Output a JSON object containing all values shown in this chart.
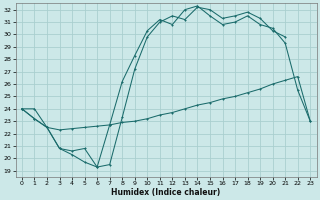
{
  "xlabel": "Humidex (Indice chaleur)",
  "bg_color": "#cce8e8",
  "grid_color": "#aacfcf",
  "line_color": "#1a6b6b",
  "xlim": [
    -0.5,
    23.5
  ],
  "ylim": [
    18.5,
    32.5
  ],
  "xticks": [
    0,
    1,
    2,
    3,
    4,
    5,
    6,
    7,
    8,
    9,
    10,
    11,
    12,
    13,
    14,
    15,
    16,
    17,
    18,
    19,
    20,
    21,
    22,
    23
  ],
  "yticks": [
    19,
    20,
    21,
    22,
    23,
    24,
    25,
    26,
    27,
    28,
    29,
    30,
    31,
    32
  ],
  "line1_x": [
    0,
    1,
    2,
    3,
    4,
    5,
    6,
    7,
    8,
    9,
    10,
    11,
    12,
    13,
    14,
    15,
    16,
    17,
    18,
    19,
    20,
    21
  ],
  "line1_y": [
    24.0,
    24.0,
    22.5,
    20.8,
    20.6,
    20.8,
    19.3,
    19.5,
    23.3,
    27.2,
    29.8,
    31.0,
    31.5,
    31.2,
    32.2,
    32.0,
    31.3,
    31.5,
    31.8,
    31.3,
    30.3,
    29.8
  ],
  "line2_x": [
    0,
    1,
    2,
    3,
    4,
    5,
    6,
    7,
    8,
    9,
    10,
    11,
    12,
    13,
    14,
    15,
    16,
    17,
    18,
    19,
    20,
    21,
    22,
    23
  ],
  "line2_y": [
    24.0,
    23.2,
    22.5,
    22.3,
    22.4,
    22.5,
    22.6,
    22.7,
    22.9,
    23.0,
    23.2,
    23.5,
    23.7,
    24.0,
    24.3,
    24.5,
    24.8,
    25.0,
    25.3,
    25.6,
    26.0,
    26.3,
    26.6,
    23.0
  ],
  "line3_x": [
    0,
    1,
    2,
    3,
    4,
    5,
    6,
    7,
    8,
    9,
    10,
    11,
    12,
    13,
    14,
    15,
    16,
    17,
    18,
    19,
    20,
    21,
    22,
    23
  ],
  "line3_y": [
    24.0,
    23.2,
    22.5,
    20.8,
    20.3,
    19.7,
    19.3,
    22.7,
    26.2,
    28.3,
    30.3,
    31.2,
    30.8,
    32.0,
    32.3,
    31.5,
    30.8,
    31.0,
    31.5,
    30.8,
    30.5,
    29.3,
    25.5,
    23.0
  ]
}
